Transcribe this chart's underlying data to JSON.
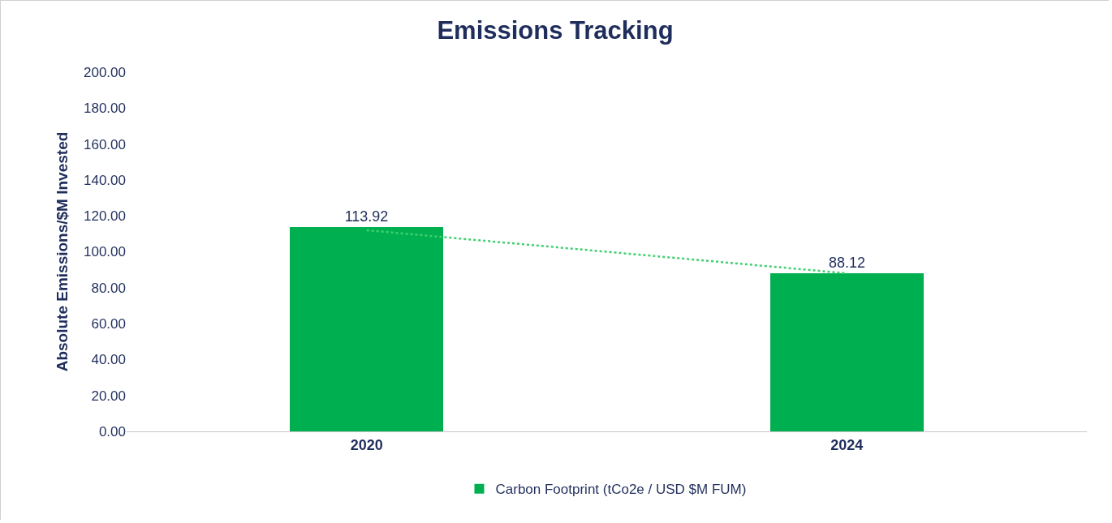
{
  "chart_data": {
    "type": "bar",
    "title": "Emissions Tracking",
    "ylabel": "Absolute Emissions/$M Invested",
    "categories": [
      "2020",
      "2024"
    ],
    "series": [
      {
        "name": "Carbon Footprint (tCo2e / USD $M FUM)",
        "color": "#00b050",
        "values": [
          113.92,
          88.12
        ],
        "data_labels": true
      },
      {
        "type": "line",
        "color": "#3fd070",
        "values": [
          112,
          88
        ],
        "line_style": "dotted",
        "marker": "none"
      }
    ],
    "ylim": [
      0,
      200
    ],
    "yticks": [
      {
        "value": 0,
        "label": "0.00"
      },
      {
        "value": 20,
        "label": "20.00"
      },
      {
        "value": 40,
        "label": "40.00"
      },
      {
        "value": 60,
        "label": "60.00"
      },
      {
        "value": 80,
        "label": "80.00"
      },
      {
        "value": 100,
        "label": "100.00"
      },
      {
        "value": 120,
        "label": "120.00"
      },
      {
        "value": 140,
        "label": "140.00"
      },
      {
        "value": 160,
        "label": "160.00"
      },
      {
        "value": 180,
        "label": "180.00"
      },
      {
        "value": 200,
        "label": "200.00"
      }
    ],
    "grid": false,
    "legend": "bottom"
  }
}
